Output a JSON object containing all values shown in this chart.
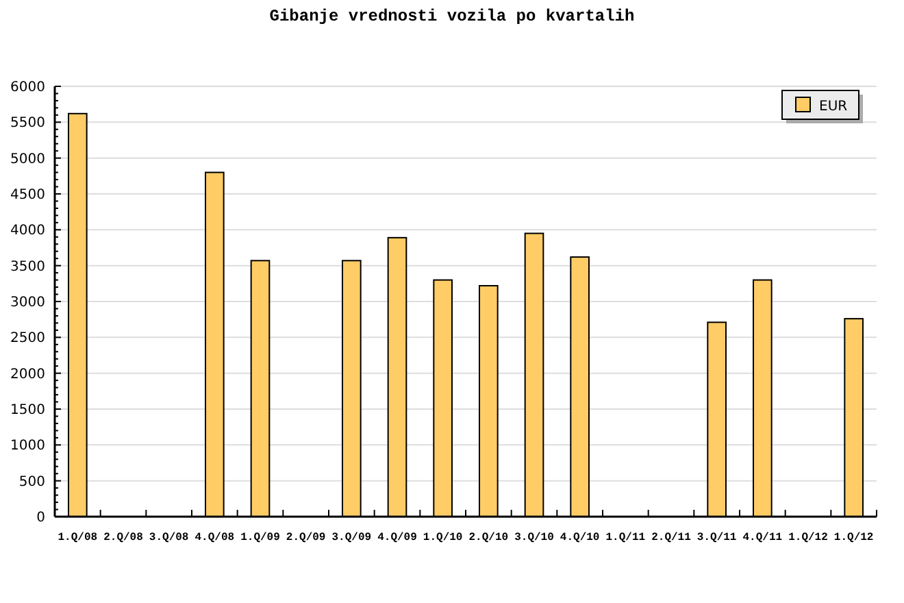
{
  "chart_data": {
    "type": "bar",
    "title": "Gibanje vrednosti vozila po kvartalih",
    "categories": [
      "1.Q/08",
      "2.Q/08",
      "3.Q/08",
      "4.Q/08",
      "1.Q/09",
      "2.Q/09",
      "3.Q/09",
      "4.Q/09",
      "1.Q/10",
      "2.Q/10",
      "3.Q/10",
      "4.Q/10",
      "1.Q/11",
      "2.Q/11",
      "3.Q/11",
      "4.Q/11",
      "1.Q/12",
      "1.Q/12"
    ],
    "series": [
      {
        "name": "EUR",
        "color": "#ffcc66",
        "values": [
          5620,
          null,
          null,
          4800,
          3570,
          null,
          3570,
          3890,
          3300,
          3220,
          3950,
          3620,
          null,
          null,
          2710,
          3300,
          null,
          2760
        ]
      }
    ],
    "ylim": [
      0,
      6000
    ],
    "yticks": [
      0,
      {
        "value": 100,
        "label": null
      },
      {
        "value": 200,
        "label": null
      },
      {
        "value": 300,
        "label": null
      },
      {
        "value": 400,
        "label": null
      },
      500,
      {
        "value": 600,
        "label": null
      },
      {
        "value": 700,
        "label": null
      },
      {
        "value": 800,
        "label": null
      },
      {
        "value": 900,
        "label": null
      },
      1000,
      {
        "value": 1100,
        "label": null
      },
      {
        "value": 1200,
        "label": null
      },
      {
        "value": 1300,
        "label": null
      },
      {
        "value": 1400,
        "label": null
      },
      1500,
      {
        "value": 1600,
        "label": null
      },
      {
        "value": 1700,
        "label": null
      },
      {
        "value": 1800,
        "label": null
      },
      {
        "value": 1900,
        "label": null
      },
      2000,
      {
        "value": 2100,
        "label": null
      },
      {
        "value": 2200,
        "label": null
      },
      {
        "value": 2300,
        "label": null
      },
      {
        "value": 2400,
        "label": null
      },
      2500,
      {
        "value": 2600,
        "label": null
      },
      {
        "value": 2700,
        "label": null
      },
      {
        "value": 2800,
        "label": null
      },
      {
        "value": 2900,
        "label": null
      },
      3000,
      {
        "value": 3100,
        "label": null
      },
      {
        "value": 3200,
        "label": null
      },
      {
        "value": 3300,
        "label": null
      },
      {
        "value": 3400,
        "label": null
      },
      3500,
      {
        "value": 3600,
        "label": null
      },
      {
        "value": 3700,
        "label": null
      },
      {
        "value": 3800,
        "label": null
      },
      {
        "value": 3900,
        "label": null
      },
      4000,
      {
        "value": 4100,
        "label": null
      },
      {
        "value": 4200,
        "label": null
      },
      {
        "value": 4300,
        "label": null
      },
      {
        "value": 4400,
        "label": null
      },
      4500,
      {
        "value": 4600,
        "label": null
      },
      {
        "value": 4700,
        "label": null
      },
      {
        "value": 4800,
        "label": null
      },
      {
        "value": 4900,
        "label": null
      },
      5000,
      {
        "value": 5100,
        "label": null
      },
      {
        "value": 5200,
        "label": null
      },
      {
        "value": 5300,
        "label": null
      },
      {
        "value": 5400,
        "label": null
      },
      5500,
      {
        "value": 5600,
        "label": null
      },
      {
        "value": 5700,
        "label": null
      },
      {
        "value": 5800,
        "label": null
      },
      {
        "value": 5900,
        "label": null
      },
      6000
    ],
    "grid": "y",
    "legend": "top right"
  }
}
